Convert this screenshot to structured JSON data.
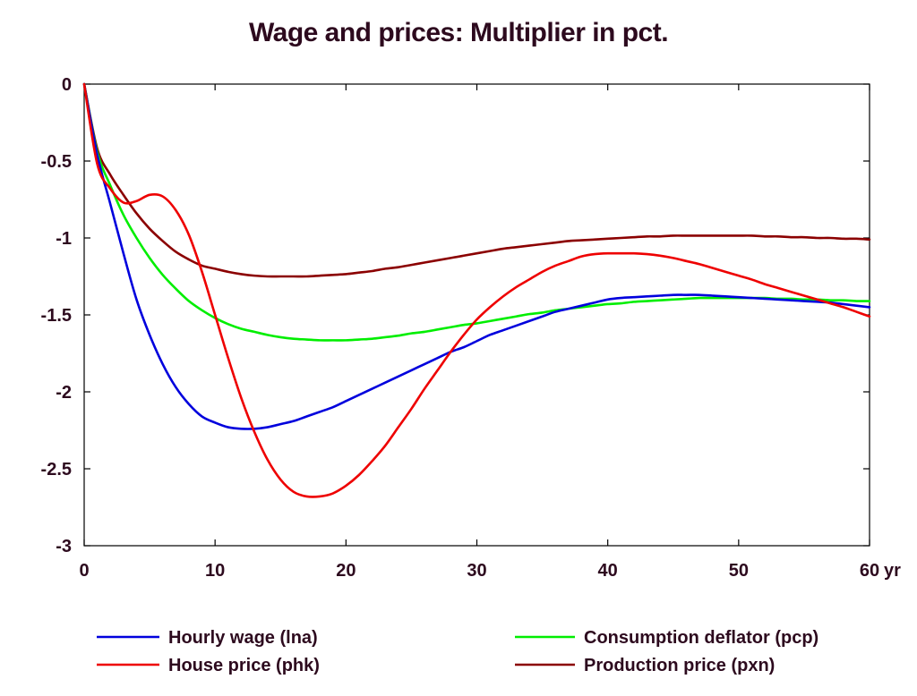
{
  "chart_data": {
    "type": "line",
    "title": "Wage and prices: Multiplier in pct.",
    "xlabel": "",
    "ylabel": "",
    "x_unit_label": "yr",
    "xlim": [
      0,
      60
    ],
    "ylim": [
      -3,
      0
    ],
    "x_ticks": [
      0,
      10,
      20,
      30,
      40,
      50,
      60
    ],
    "y_ticks": [
      0,
      -0.5,
      -1,
      -1.5,
      -2,
      -2.5,
      -3
    ],
    "x": [
      0,
      1,
      2,
      3,
      4,
      5,
      6,
      7,
      8,
      9,
      10,
      11,
      12,
      13,
      14,
      15,
      16,
      17,
      18,
      19,
      20,
      21,
      22,
      23,
      24,
      25,
      26,
      27,
      28,
      29,
      30,
      31,
      32,
      33,
      34,
      35,
      36,
      37,
      38,
      39,
      40,
      41,
      42,
      43,
      44,
      45,
      46,
      47,
      48,
      49,
      50,
      51,
      52,
      53,
      54,
      55,
      56,
      57,
      58,
      59,
      60
    ],
    "series": [
      {
        "name": "Hourly wage (lna)",
        "color": "#0000dd",
        "values": [
          0,
          -0.46,
          -0.78,
          -1.1,
          -1.4,
          -1.63,
          -1.82,
          -1.97,
          -2.08,
          -2.16,
          -2.2,
          -2.23,
          -2.24,
          -2.24,
          -2.23,
          -2.21,
          -2.19,
          -2.16,
          -2.13,
          -2.1,
          -2.06,
          -2.02,
          -1.98,
          -1.94,
          -1.9,
          -1.86,
          -1.82,
          -1.78,
          -1.74,
          -1.71,
          -1.67,
          -1.63,
          -1.6,
          -1.57,
          -1.54,
          -1.51,
          -1.48,
          -1.46,
          -1.44,
          -1.42,
          -1.4,
          -1.39,
          -1.385,
          -1.38,
          -1.375,
          -1.37,
          -1.37,
          -1.37,
          -1.375,
          -1.38,
          -1.385,
          -1.39,
          -1.395,
          -1.4,
          -1.405,
          -1.41,
          -1.415,
          -1.42,
          -1.43,
          -1.44,
          -1.45
        ]
      },
      {
        "name": "Consumption deflator (pcp)",
        "color": "#00ee00",
        "values": [
          0,
          -0.44,
          -0.66,
          -0.85,
          -1.0,
          -1.13,
          -1.24,
          -1.33,
          -1.41,
          -1.47,
          -1.52,
          -1.56,
          -1.59,
          -1.61,
          -1.63,
          -1.645,
          -1.655,
          -1.66,
          -1.665,
          -1.665,
          -1.665,
          -1.66,
          -1.655,
          -1.645,
          -1.635,
          -1.62,
          -1.61,
          -1.595,
          -1.58,
          -1.565,
          -1.555,
          -1.54,
          -1.525,
          -1.51,
          -1.495,
          -1.485,
          -1.47,
          -1.46,
          -1.45,
          -1.44,
          -1.43,
          -1.425,
          -1.415,
          -1.41,
          -1.405,
          -1.4,
          -1.395,
          -1.39,
          -1.39,
          -1.39,
          -1.39,
          -1.39,
          -1.39,
          -1.395,
          -1.395,
          -1.4,
          -1.4,
          -1.405,
          -1.405,
          -1.41,
          -1.41
        ]
      },
      {
        "name": "House price (phk)",
        "color": "#ee0000",
        "values": [
          0,
          -0.52,
          -0.68,
          -0.77,
          -0.76,
          -0.72,
          -0.73,
          -0.82,
          -0.98,
          -1.22,
          -1.5,
          -1.78,
          -2.04,
          -2.26,
          -2.44,
          -2.57,
          -2.65,
          -2.68,
          -2.68,
          -2.66,
          -2.61,
          -2.54,
          -2.45,
          -2.35,
          -2.23,
          -2.11,
          -1.98,
          -1.86,
          -1.74,
          -1.63,
          -1.53,
          -1.45,
          -1.38,
          -1.32,
          -1.27,
          -1.22,
          -1.18,
          -1.15,
          -1.12,
          -1.105,
          -1.1,
          -1.1,
          -1.1,
          -1.105,
          -1.115,
          -1.13,
          -1.15,
          -1.17,
          -1.195,
          -1.22,
          -1.245,
          -1.27,
          -1.3,
          -1.325,
          -1.35,
          -1.375,
          -1.4,
          -1.425,
          -1.45,
          -1.48,
          -1.51
        ]
      },
      {
        "name": "Production price (pxn)",
        "color": "#8b0000",
        "values": [
          0,
          -0.42,
          -0.59,
          -0.72,
          -0.84,
          -0.94,
          -1.02,
          -1.09,
          -1.14,
          -1.18,
          -1.2,
          -1.22,
          -1.235,
          -1.245,
          -1.25,
          -1.25,
          -1.25,
          -1.25,
          -1.245,
          -1.24,
          -1.235,
          -1.225,
          -1.215,
          -1.2,
          -1.19,
          -1.175,
          -1.16,
          -1.145,
          -1.13,
          -1.115,
          -1.1,
          -1.085,
          -1.07,
          -1.06,
          -1.05,
          -1.04,
          -1.03,
          -1.02,
          -1.015,
          -1.01,
          -1.005,
          -1.0,
          -0.995,
          -0.99,
          -0.99,
          -0.985,
          -0.985,
          -0.985,
          -0.985,
          -0.985,
          -0.985,
          -0.985,
          -0.99,
          -0.99,
          -0.995,
          -0.995,
          -1.0,
          -1.0,
          -1.005,
          -1.005,
          -1.01
        ]
      }
    ],
    "legend": {
      "placement": "bottom",
      "entries": [
        {
          "label": "Hourly wage (lna)",
          "color": "#0000dd"
        },
        {
          "label": "Consumption deflator (pcp)",
          "color": "#00ee00"
        },
        {
          "label": "House price (phk)",
          "color": "#ee0000"
        },
        {
          "label": "Production price (pxn)",
          "color": "#8b0000"
        }
      ]
    },
    "grid": false
  }
}
